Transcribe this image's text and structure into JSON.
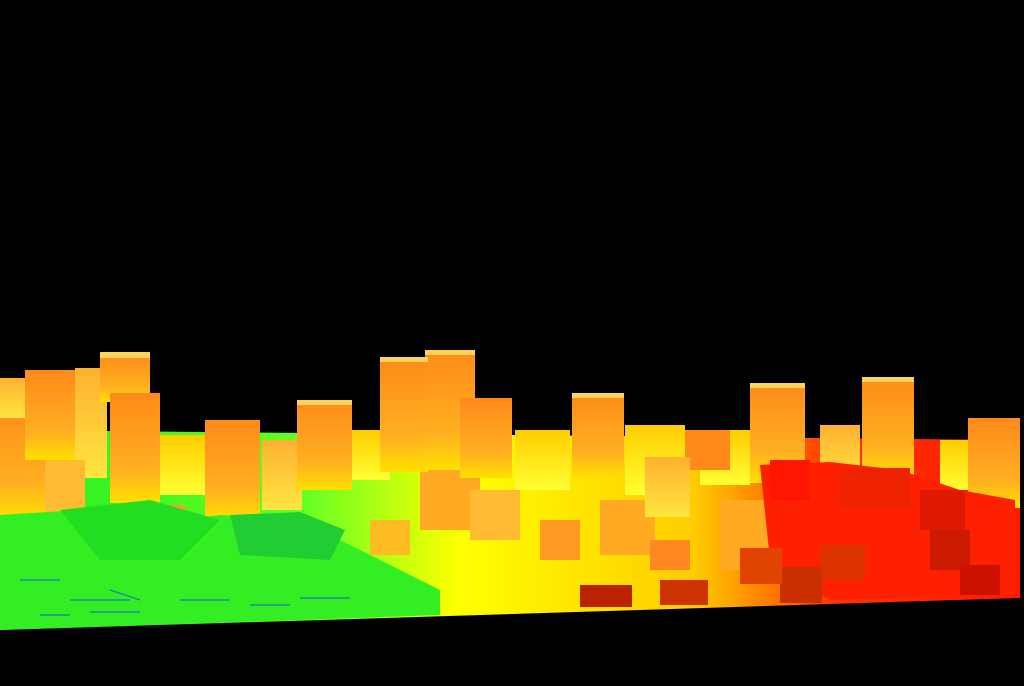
{
  "scene": {
    "description_visible_text": "",
    "background_color": "#000000",
    "palette": {
      "tall": "#ff9a1a",
      "tall_light": "#ffc21a",
      "mid": "#ffd000",
      "ground": "#ffff00",
      "near_left": "#22ee22",
      "near_right": "#ff1a00",
      "roof_highlight": "#ffe066"
    }
  }
}
